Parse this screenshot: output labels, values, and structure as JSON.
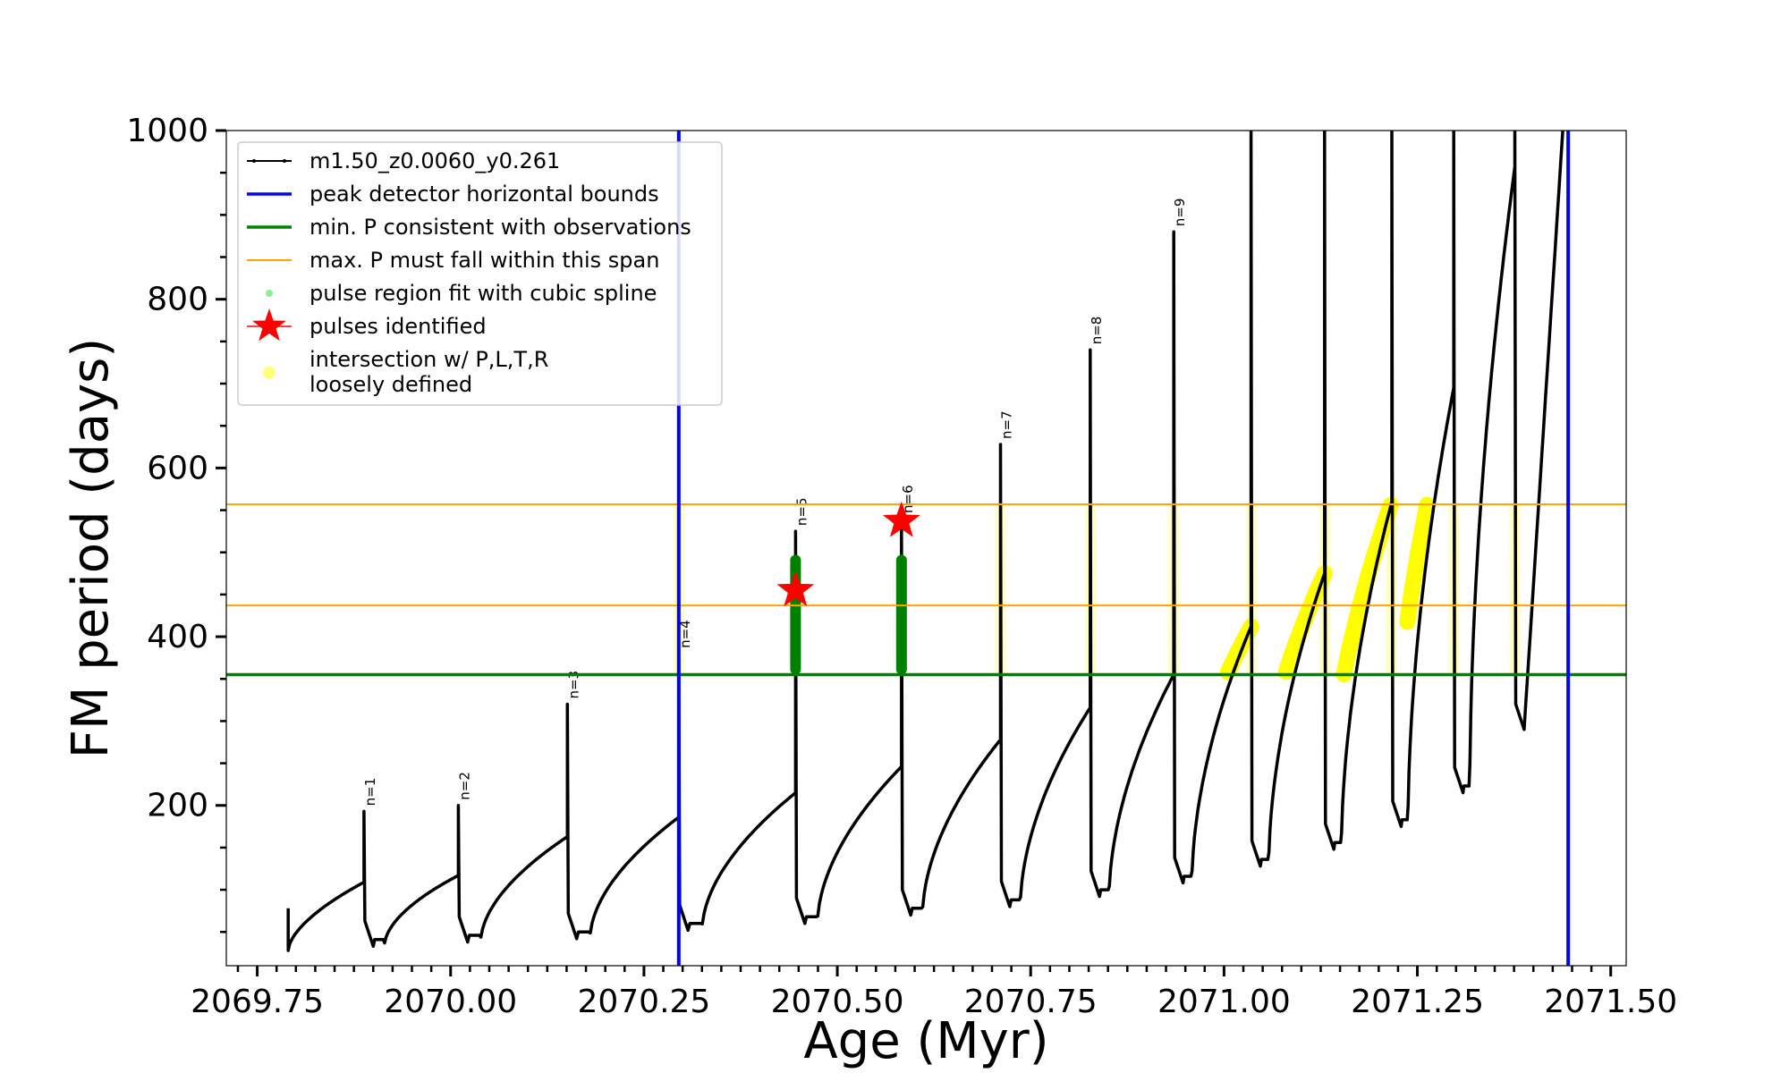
{
  "chart_data": {
    "type": "line",
    "xlabel": "Age (Myr)",
    "ylabel": "FM period (days)",
    "xlim": [
      2069.71,
      2071.52
    ],
    "ylim": [
      10,
      1000
    ],
    "x_ticks": [
      2069.75,
      2070.0,
      2070.25,
      2070.5,
      2070.75,
      2071.0,
      2071.25,
      2071.5
    ],
    "x_tick_labels": [
      "2069.75",
      "2070.00",
      "2070.25",
      "2070.50",
      "2070.75",
      "2071.00",
      "2071.25",
      "2071.50"
    ],
    "y_ticks": [
      200,
      400,
      600,
      800,
      1000
    ],
    "y_tick_labels": [
      "200",
      "400",
      "600",
      "800",
      "1000"
    ],
    "grid": false,
    "legend_position": "top-left",
    "legend": [
      {
        "label": "m1.50_z0.0060_y0.261",
        "style": "line-marker",
        "color": "#000000"
      },
      {
        "label": "peak detector horizontal bounds",
        "style": "line",
        "color": "#0000ff"
      },
      {
        "label": "min. P consistent with observations",
        "style": "line",
        "color": "#008000"
      },
      {
        "label": "max. P must fall within this span",
        "style": "line",
        "color": "#ffa500"
      },
      {
        "label": "pulse region fit with cubic spline",
        "style": "dot",
        "color": "#90ee90"
      },
      {
        "label": "pulses identified",
        "style": "star",
        "color": "#ff0000"
      },
      {
        "label": "intersection w/ P,L,T,R",
        "label2": "loosely defined",
        "style": "dot",
        "color": "#ffff80"
      }
    ],
    "peak_detector_bounds": [
      2070.295,
      2071.445
    ],
    "min_period_line": 355,
    "max_period_span": [
      437,
      557
    ],
    "pulses": [
      {
        "label": "n=1",
        "age": 2069.888,
        "trough": 33,
        "pre_peak": 109,
        "spike": 193
      },
      {
        "label": "n=2",
        "age": 2070.01,
        "trough": 38,
        "pre_peak": 117,
        "spike": 200
      },
      {
        "label": "n=3",
        "age": 2070.151,
        "trough": 42,
        "pre_peak": 163,
        "spike": 320
      },
      {
        "label": "n=4",
        "age": 2070.295,
        "trough": 52,
        "pre_peak": 186,
        "spike": 380
      },
      {
        "label": "n=5",
        "age": 2070.446,
        "trough": 60,
        "pre_peak": 215,
        "spike": 525
      },
      {
        "label": "n=6",
        "age": 2070.583,
        "trough": 70,
        "pre_peak": 246,
        "spike": 540
      },
      {
        "label": "n=7",
        "age": 2070.711,
        "trough": 80,
        "pre_peak": 278,
        "spike": 628
      },
      {
        "label": "n=8",
        "age": 2070.827,
        "trough": 92,
        "pre_peak": 316,
        "spike": 740
      },
      {
        "label": "n=9",
        "age": 2070.935,
        "trough": 108,
        "pre_peak": 355,
        "spike": 880
      },
      {
        "label": "",
        "age": 2071.035,
        "trough": 128,
        "pre_peak": 412,
        "spike": 1000
      },
      {
        "label": "",
        "age": 2071.13,
        "trough": 148,
        "pre_peak": 475,
        "spike": 1000
      },
      {
        "label": "",
        "age": 2071.217,
        "trough": 175,
        "pre_peak": 560,
        "spike": 1000
      },
      {
        "label": "",
        "age": 2071.297,
        "trough": 215,
        "pre_peak": 695,
        "spike": 1000
      },
      {
        "label": "",
        "age": 2071.376,
        "trough": 290,
        "pre_peak": 957,
        "spike": 1000
      }
    ],
    "pulses_identified": [
      {
        "age": 2070.446,
        "period": 455
      },
      {
        "age": 2070.583,
        "period": 537
      }
    ],
    "series_start": {
      "age": 2069.79,
      "period": 28,
      "first_spike": 78
    }
  }
}
